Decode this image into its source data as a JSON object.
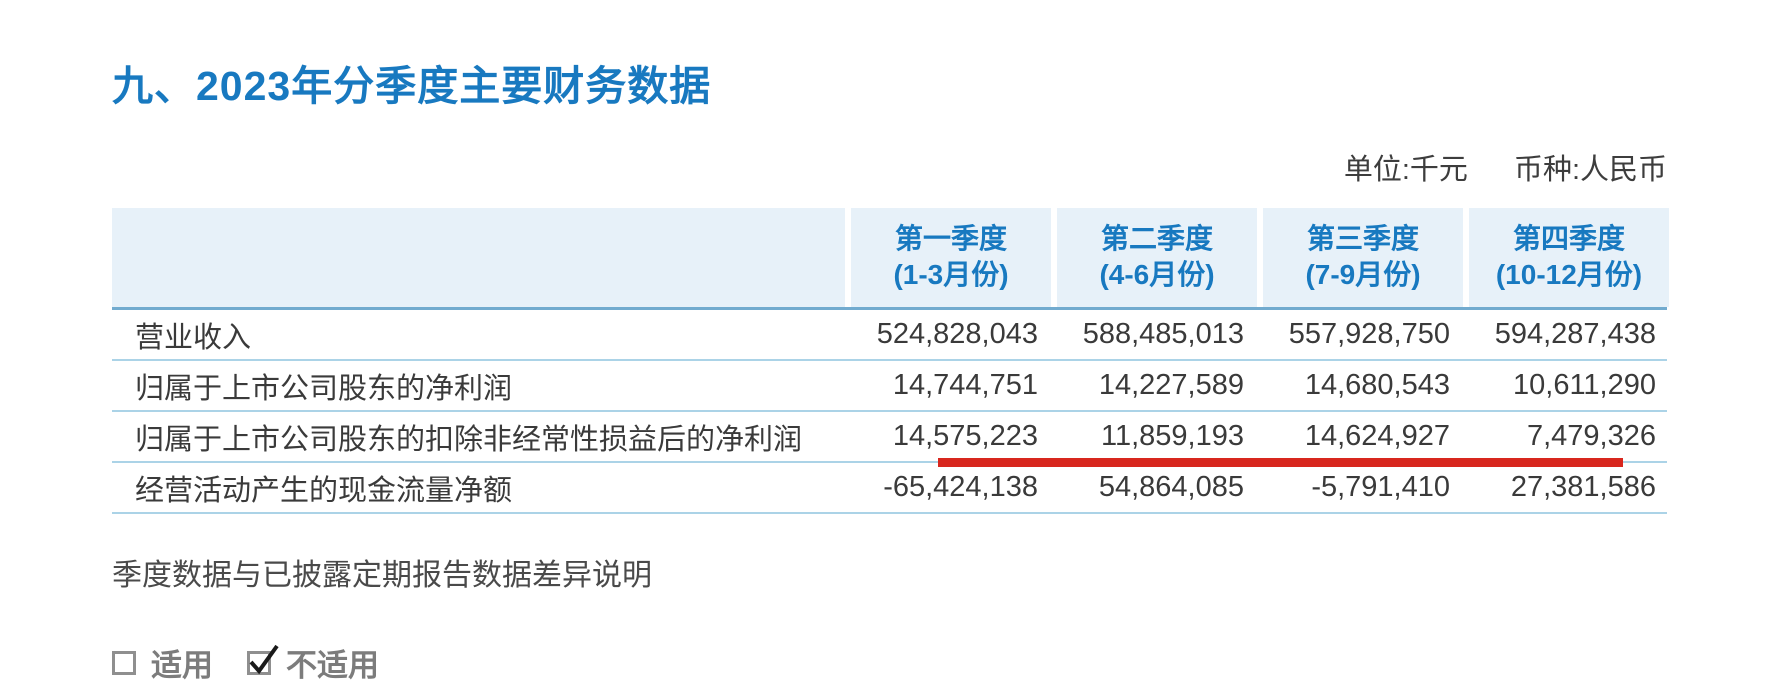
{
  "page": {
    "title": "九、2023年分季度主要财务数据",
    "unit_note": "单位:千元",
    "currency_note": "币种:人民币",
    "diff_note": "季度数据与已披露定期报告数据差异说明"
  },
  "table": {
    "columns": [
      {
        "label": "第一季度",
        "sublabel": "(1-3月份)"
      },
      {
        "label": "第二季度",
        "sublabel": "(4-6月份)"
      },
      {
        "label": "第三季度",
        "sublabel": "(7-9月份)"
      },
      {
        "label": "第四季度",
        "sublabel": "(10-12月份)"
      }
    ],
    "rows": [
      {
        "label": "营业收入",
        "values": [
          "524,828,043",
          "588,485,013",
          "557,928,750",
          "594,287,438"
        ],
        "red_underline": false
      },
      {
        "label": "归属于上市公司股东的净利润",
        "values": [
          "14,744,751",
          "14,227,589",
          "14,680,543",
          "10,611,290"
        ],
        "red_underline": false
      },
      {
        "label": "归属于上市公司股东的扣除非经常性损益后的净利润",
        "values": [
          "14,575,223",
          "11,859,193",
          "14,624,927",
          "7,479,326"
        ],
        "red_underline": true
      },
      {
        "label": "经营活动产生的现金流量净额",
        "values": [
          "-65,424,138",
          "54,864,085",
          "-5,791,410",
          "27,381,586"
        ],
        "red_underline": false
      }
    ]
  },
  "checkboxes": [
    {
      "label": "适用",
      "checked": false
    },
    {
      "label": "不适用",
      "checked": true
    }
  ],
  "colors": {
    "title_blue": "#1879c0",
    "header_bg": "#e7f1f9",
    "header_border_blue": "#72abcf",
    "row_border_blue": "#abd3e7",
    "highlight_red": "#d8271e",
    "body_text": "#3a3a3a",
    "checkbox_gray": "#7c7c7c"
  }
}
